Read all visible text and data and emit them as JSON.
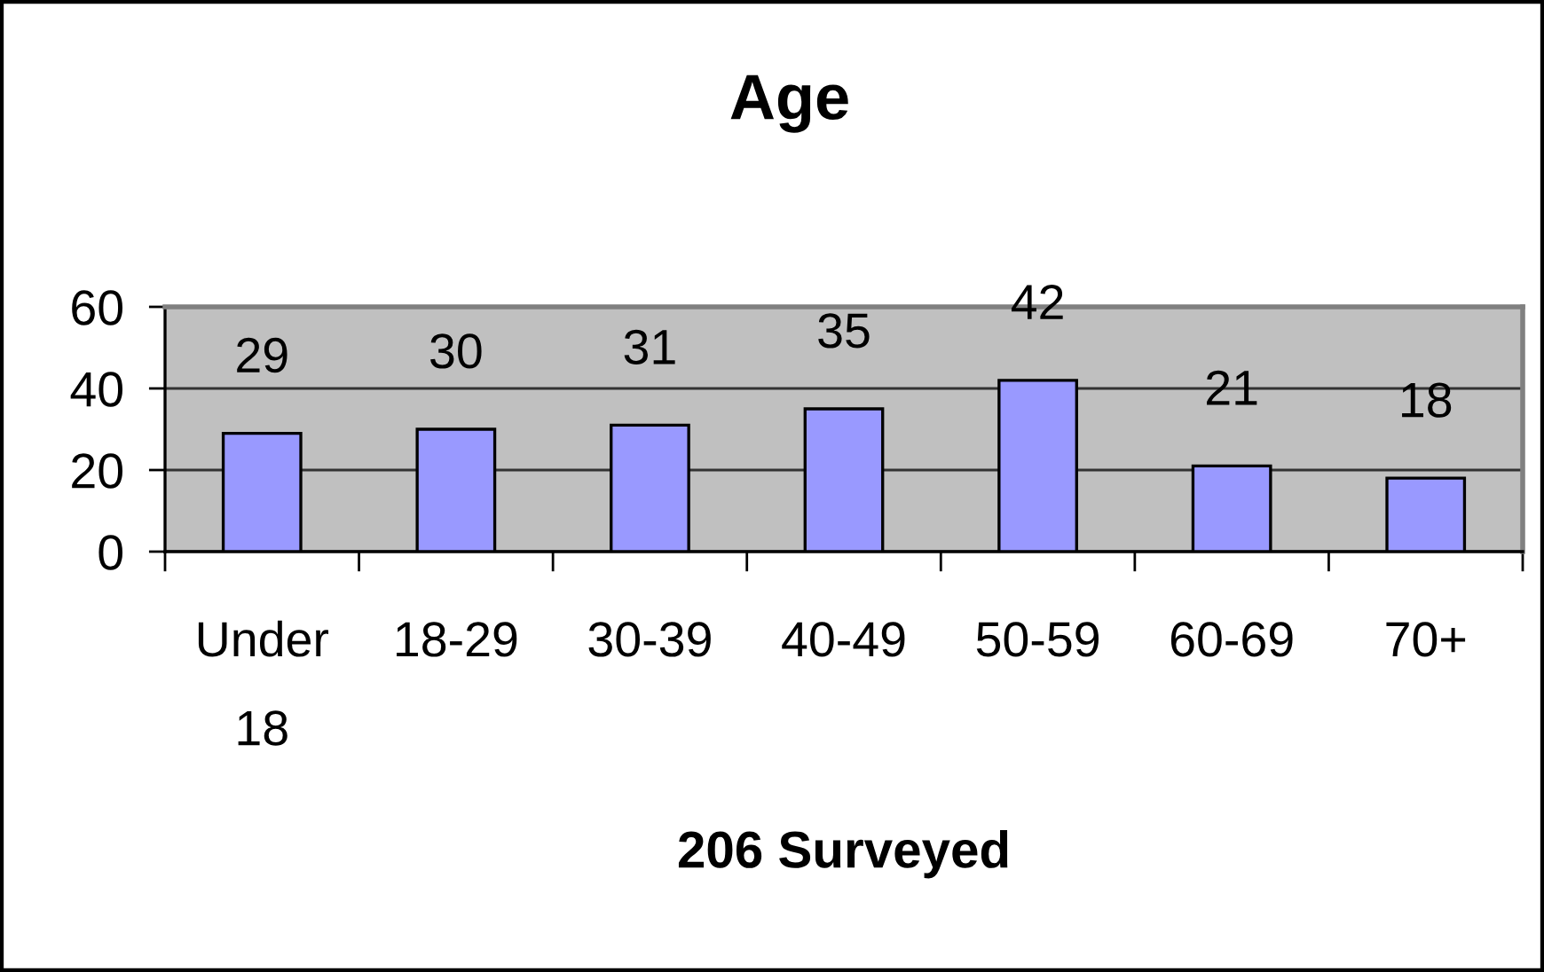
{
  "chart_data": {
    "type": "bar",
    "title": "Age",
    "xlabel": "206 Surveyed",
    "categories": [
      "Under 18",
      "18-29",
      "30-39",
      "40-49",
      "50-59",
      "60-69",
      "70+"
    ],
    "values": [
      29,
      30,
      31,
      35,
      42,
      21,
      18
    ],
    "color": "#9999ff",
    "ylim": [
      0,
      60
    ],
    "yticks": [
      0,
      20,
      40,
      60
    ],
    "grid": "y",
    "data_labels": true
  }
}
